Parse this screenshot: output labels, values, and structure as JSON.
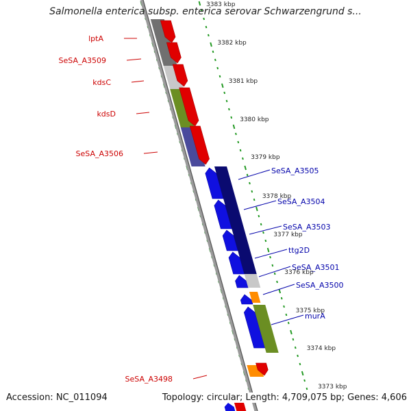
{
  "title": "Salmonella enterica subsp. enterica serovar Schwarzengrund s...",
  "footer": {
    "accession": "Accession: NC_011094",
    "summary": "Topology: circular; Length: 4,709,075 bp; Genes: 4,606"
  },
  "scale": {
    "unit": "kbp",
    "ticks": [
      "3383 kbp",
      "3382 kbp",
      "3381 kbp",
      "3380 kbp",
      "3379 kbp",
      "3378 kbp",
      "3377 kbp",
      "3376 kbp",
      "3375 kbp",
      "3374 kbp",
      "3373 kbp"
    ]
  },
  "colors": {
    "forward_gene": "#e00000",
    "reverse_gene": "#1010e0",
    "forward_label": "#cc0000",
    "reverse_label": "#0000aa",
    "backbone": "#888888",
    "ruler_dots": "#229922",
    "orange_feature": "#ff8c00",
    "olive_feature": "#6b8e23",
    "dark_navy": "#0a0a70",
    "slate_blue": "#4a4a9c",
    "gray_feature": "#707070",
    "light_gray_feature": "#c8c8c8"
  },
  "forward_genes": [
    {
      "label": "lptA",
      "color": "#707070"
    },
    {
      "label": "SeSA_A3509",
      "color": "#c8c8c8"
    },
    {
      "label": "kdsC",
      "color": "#c8c8c8"
    },
    {
      "label": "kdsD",
      "color": "#6b8e23"
    },
    {
      "label": "SeSA_A3506",
      "color": "#4a4a9c"
    },
    {
      "label": "SeSA_A3498",
      "color": "#ff8c00"
    }
  ],
  "reverse_genes": [
    {
      "label": "SeSA_A3505",
      "color": "#0a0a70"
    },
    {
      "label": "SeSA_A3504",
      "color": "#0a0a70"
    },
    {
      "label": "SeSA_A3503",
      "color": "#0a0a70"
    },
    {
      "label": "ttg2D",
      "color": "#0a0a70"
    },
    {
      "label": "SeSA_A3501",
      "color": "#c8c8c8"
    },
    {
      "label": "SeSA_A3500",
      "color": "#ff8c00"
    },
    {
      "label": "murA",
      "color": "#6b8e23"
    }
  ]
}
